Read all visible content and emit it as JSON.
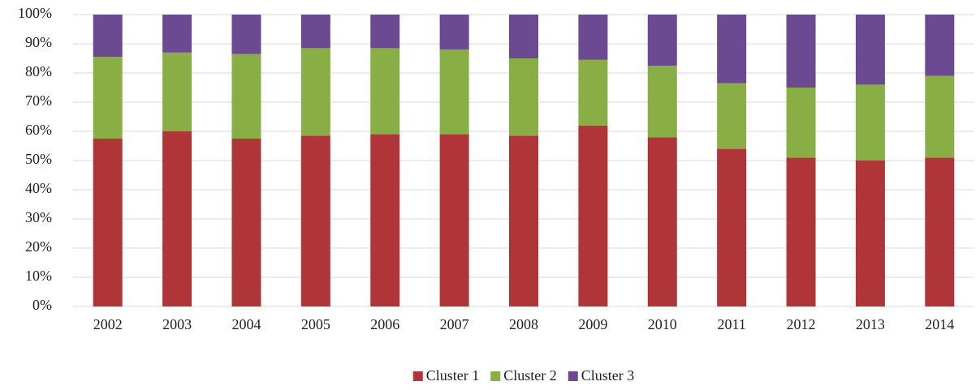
{
  "chart_data": {
    "type": "stacked_bar_100",
    "categories": [
      "2002",
      "2003",
      "2004",
      "2005",
      "2006",
      "2007",
      "2008",
      "2009",
      "2010",
      "2011",
      "2012",
      "2013",
      "2014"
    ],
    "series": [
      {
        "name": "Cluster 1",
        "color": "#b03538",
        "values": [
          57.5,
          60,
          57.5,
          58.5,
          59,
          59,
          58.5,
          62,
          58,
          54,
          51,
          50,
          51
        ]
      },
      {
        "name": "Cluster 2",
        "color": "#8aae46",
        "values": [
          28,
          27,
          29,
          30,
          29.5,
          29,
          26.5,
          22.5,
          24.5,
          22.5,
          24,
          26,
          28
        ]
      },
      {
        "name": "Cluster 3",
        "color": "#6b4a91",
        "values": [
          14.5,
          13,
          13.5,
          11.5,
          11.5,
          12,
          15,
          15.5,
          17.5,
          23.5,
          25,
          24,
          21
        ]
      }
    ],
    "ylim": [
      0,
      100
    ],
    "yticks": [
      {
        "value": 0,
        "label": "0%"
      },
      {
        "value": 10,
        "label": "10%"
      },
      {
        "value": 20,
        "label": "20%"
      },
      {
        "value": 30,
        "label": "30%"
      },
      {
        "value": 40,
        "label": "40%"
      },
      {
        "value": 50,
        "label": "50%"
      },
      {
        "value": 60,
        "label": "60%"
      },
      {
        "value": 70,
        "label": "70%"
      },
      {
        "value": 80,
        "label": "80%"
      },
      {
        "value": 90,
        "label": "90%"
      },
      {
        "value": 100,
        "label": "100%"
      }
    ],
    "grid": true,
    "legend": "bottom"
  }
}
